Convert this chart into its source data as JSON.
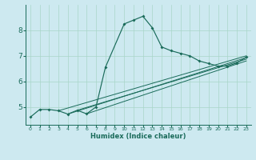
{
  "xlabel": "Humidex (Indice chaleur)",
  "bg_color": "#cde9f0",
  "line_color": "#1a6b5a",
  "grid_color": "#a8d5c8",
  "xlim": [
    -0.5,
    23.5
  ],
  "ylim": [
    4.3,
    9.0
  ],
  "xticks": [
    0,
    1,
    2,
    3,
    4,
    5,
    6,
    7,
    8,
    9,
    10,
    11,
    12,
    13,
    14,
    15,
    16,
    17,
    18,
    19,
    20,
    21,
    22,
    23
  ],
  "yticks": [
    5,
    6,
    7,
    8
  ],
  "main_x": [
    0,
    1,
    2,
    3,
    4,
    5,
    6,
    7,
    8,
    10,
    11,
    12,
    13,
    14,
    15,
    16,
    17,
    18,
    19,
    20,
    21,
    22,
    23
  ],
  "main_y": [
    4.6,
    4.9,
    4.9,
    4.85,
    4.72,
    4.87,
    4.73,
    5.0,
    6.55,
    8.25,
    8.4,
    8.55,
    8.1,
    7.35,
    7.2,
    7.1,
    7.0,
    6.8,
    6.7,
    6.6,
    6.6,
    6.72,
    6.95
  ],
  "seg1_end_x": 8,
  "seg2_start_x": 10,
  "fan_lines": [
    {
      "x0": 3,
      "y0": 4.85,
      "x1": 23,
      "y1": 7.0
    },
    {
      "x0": 4,
      "y0": 4.72,
      "x1": 23,
      "y1": 6.93
    },
    {
      "x0": 5,
      "y0": 4.87,
      "x1": 23,
      "y1": 6.87
    },
    {
      "x0": 6,
      "y0": 4.73,
      "x1": 23,
      "y1": 6.8
    }
  ]
}
